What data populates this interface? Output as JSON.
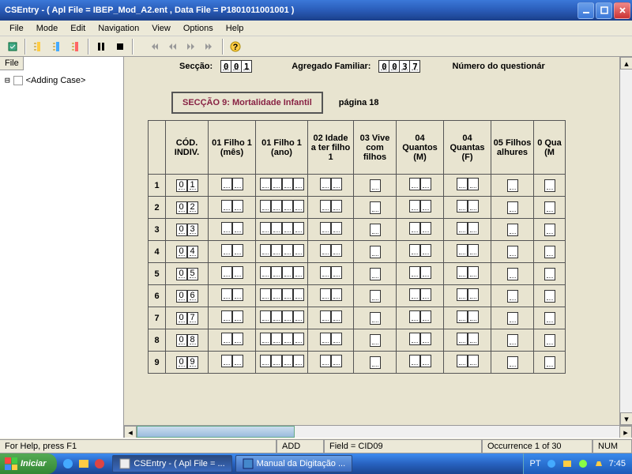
{
  "titlebar": {
    "title": "CSEntry - ( Apl File = IBEP_Mod_A2.ent , Data File = P1801011001001 )"
  },
  "menubar": {
    "items": [
      "File",
      "Mode",
      "Edit",
      "Navigation",
      "View",
      "Options",
      "Help"
    ]
  },
  "sidebar": {
    "tab": "File",
    "item": "<Adding Case>"
  },
  "header": {
    "seccao_label": "Secção:",
    "seccao_value": "001",
    "agregado_label": "Agregado Familiar:",
    "agregado_value": "0037",
    "numero_label": "Número do questionár"
  },
  "section": {
    "title": "SECÇÃO 9: Mortalidade Infantil",
    "page": "página 18"
  },
  "grid": {
    "columns": [
      "CÓD. INDIV.",
      "01 Filho 1 (mês)",
      "01 Filho 1 (ano)",
      "02 Idade a ter filho 1",
      "03 Vive com filhos",
      "04 Quantos (M)",
      "04 Quantas (F)",
      "05 Filhos alhures",
      "0 Qua (M"
    ],
    "rows": [
      {
        "num": "1",
        "cod": "01"
      },
      {
        "num": "2",
        "cod": "02"
      },
      {
        "num": "3",
        "cod": "03"
      },
      {
        "num": "4",
        "cod": "04"
      },
      {
        "num": "5",
        "cod": "05"
      },
      {
        "num": "6",
        "cod": "06"
      },
      {
        "num": "7",
        "cod": "07"
      },
      {
        "num": "8",
        "cod": "08"
      },
      {
        "num": "9",
        "cod": "09"
      }
    ]
  },
  "statusbar": {
    "help": "For Help, press F1",
    "add": "ADD",
    "field": "Field = CID09",
    "occurrence": "Occurrence 1 of 30",
    "num": "NUM"
  },
  "taskbar": {
    "start": "Iniciar",
    "tasks": [
      {
        "label": "CSEntry - ( Apl File = ..."
      },
      {
        "label": "Manual da Digitação ..."
      }
    ],
    "lang": "PT",
    "time": "7:45"
  }
}
